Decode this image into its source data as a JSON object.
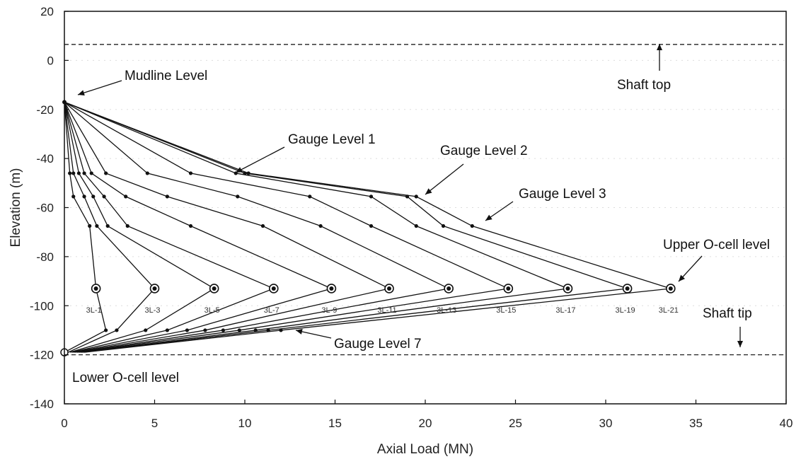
{
  "chart_data": {
    "type": "line",
    "title": "",
    "xlabel": "Axial Load (MN)",
    "ylabel": "Elevation (m)",
    "xlim": [
      0,
      40
    ],
    "ylim": [
      -140,
      20
    ],
    "xticks": [
      0,
      5,
      10,
      15,
      20,
      25,
      30,
      35,
      40
    ],
    "yticks": [
      20,
      0,
      -20,
      -40,
      -60,
      -80,
      -100,
      -120,
      -140
    ],
    "grid": false,
    "gauge_elevations": [
      -17,
      -46,
      -55.5,
      -67.5,
      -93,
      -110,
      -119
    ],
    "series": [
      {
        "name": "3L-1",
        "upward": [
          [
            0,
            -17
          ],
          [
            0.3,
            -46
          ],
          [
            0.5,
            -55.5
          ],
          [
            1.4,
            -67.5
          ],
          [
            1.75,
            -93
          ]
        ],
        "downward": [
          [
            1.75,
            -93
          ],
          [
            2.3,
            -110
          ],
          [
            0,
            -119
          ]
        ]
      },
      {
        "name": "3L-3",
        "upward": [
          [
            0,
            -17
          ],
          [
            0.5,
            -46
          ],
          [
            1.1,
            -55.5
          ],
          [
            1.8,
            -67.5
          ],
          [
            5.0,
            -93
          ]
        ],
        "downward": [
          [
            5.0,
            -93
          ],
          [
            2.9,
            -110
          ],
          [
            0.2,
            -119
          ]
        ]
      },
      {
        "name": "3L-5",
        "upward": [
          [
            0,
            -17
          ],
          [
            0.8,
            -46
          ],
          [
            1.6,
            -55.5
          ],
          [
            2.4,
            -67.5
          ],
          [
            8.3,
            -93
          ]
        ],
        "downward": [
          [
            8.3,
            -93
          ],
          [
            4.5,
            -110
          ],
          [
            0.3,
            -119
          ]
        ]
      },
      {
        "name": "3L-7",
        "upward": [
          [
            0,
            -17
          ],
          [
            1.1,
            -46
          ],
          [
            2.2,
            -55.5
          ],
          [
            3.5,
            -67.5
          ],
          [
            11.6,
            -93
          ]
        ],
        "downward": [
          [
            11.6,
            -93
          ],
          [
            5.7,
            -110
          ],
          [
            0.4,
            -119
          ]
        ]
      },
      {
        "name": "3L-9",
        "upward": [
          [
            0,
            -17
          ],
          [
            1.5,
            -46
          ],
          [
            3.4,
            -55.5
          ],
          [
            7.0,
            -67.5
          ],
          [
            14.8,
            -93
          ]
        ],
        "downward": [
          [
            14.8,
            -93
          ],
          [
            6.8,
            -110
          ],
          [
            0.5,
            -119
          ]
        ]
      },
      {
        "name": "3L-11",
        "upward": [
          [
            0,
            -17
          ],
          [
            2.3,
            -46
          ],
          [
            5.7,
            -55.5
          ],
          [
            11.0,
            -67.5
          ],
          [
            18.0,
            -93
          ]
        ],
        "downward": [
          [
            18.0,
            -93
          ],
          [
            7.8,
            -110
          ],
          [
            0.6,
            -119
          ]
        ]
      },
      {
        "name": "3L-13",
        "upward": [
          [
            0,
            -17
          ],
          [
            4.6,
            -46
          ],
          [
            9.6,
            -55.5
          ],
          [
            14.2,
            -67.5
          ],
          [
            21.3,
            -93
          ]
        ],
        "downward": [
          [
            21.3,
            -93
          ],
          [
            8.8,
            -110
          ],
          [
            0.7,
            -119
          ]
        ]
      },
      {
        "name": "3L-15",
        "upward": [
          [
            0,
            -17
          ],
          [
            7.0,
            -46
          ],
          [
            13.6,
            -55.5
          ],
          [
            17.0,
            -67.5
          ],
          [
            24.6,
            -93
          ]
        ],
        "downward": [
          [
            24.6,
            -93
          ],
          [
            9.7,
            -110
          ],
          [
            0.8,
            -119
          ]
        ]
      },
      {
        "name": "3L-17",
        "upward": [
          [
            0,
            -17
          ],
          [
            9.5,
            -46
          ],
          [
            17.0,
            -55.5
          ],
          [
            19.5,
            -67.5
          ],
          [
            27.9,
            -93
          ]
        ],
        "downward": [
          [
            27.9,
            -93
          ],
          [
            10.6,
            -110
          ],
          [
            0.9,
            -119
          ]
        ]
      },
      {
        "name": "3L-19",
        "upward": [
          [
            0,
            -17
          ],
          [
            10.0,
            -46
          ],
          [
            19.0,
            -55.5
          ],
          [
            21.0,
            -67.5
          ],
          [
            31.2,
            -93
          ]
        ],
        "downward": [
          [
            31.2,
            -93
          ],
          [
            11.3,
            -110
          ],
          [
            1.0,
            -119
          ]
        ]
      },
      {
        "name": "3L-21",
        "upward": [
          [
            0,
            -17
          ],
          [
            10.2,
            -46
          ],
          [
            19.5,
            -55.5
          ],
          [
            22.6,
            -67.5
          ],
          [
            33.6,
            -93
          ]
        ],
        "downward": [
          [
            33.6,
            -93
          ],
          [
            12.0,
            -110
          ],
          [
            1.1,
            -119
          ]
        ]
      }
    ],
    "reference_lines": [
      {
        "label": "Shaft top",
        "elevation": 6.5
      },
      {
        "label": "Lower O-cell level",
        "elevation": -120
      }
    ],
    "annotations": {
      "mudline": "Mudline Level",
      "shaft_top": "Shaft top",
      "gauge1": "Gauge Level 1",
      "gauge2": "Gauge Level 2",
      "gauge3": "Gauge Level 3",
      "upper_ocell": "Upper O-cell level",
      "shaft_tip": "Shaft tip",
      "gauge7": "Gauge Level 7",
      "lower_ocell": "Lower O-cell level"
    }
  }
}
